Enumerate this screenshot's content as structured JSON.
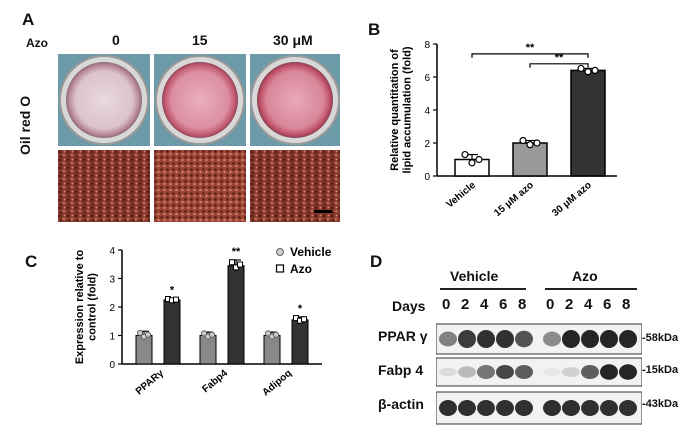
{
  "panels": {
    "A": {
      "letter": "A",
      "treatment_label": "Azo",
      "doses": [
        "0",
        "15",
        "30 μM"
      ],
      "stain_label": "Oil red O"
    },
    "B": {
      "letter": "B"
    },
    "C": {
      "letter": "C"
    },
    "D": {
      "letter": "D",
      "group_labels": [
        "Vehicle",
        "Azo"
      ],
      "days_label": "Days",
      "days_vehicle": [
        "0",
        "2",
        "4",
        "6",
        "8"
      ],
      "days_azo": [
        "0",
        "2",
        "4",
        "6",
        "8"
      ],
      "blots": [
        {
          "label": "PPAR γ",
          "kda": "-58kDa"
        },
        {
          "label": "Fabp 4",
          "kda": "-15kDa"
        },
        {
          "label": "β-actin",
          "kda": "-43kDa"
        }
      ]
    }
  },
  "chart_data": [
    {
      "type": "bar",
      "panel": "B",
      "ylabel": "Relative quantitation of lipid accumulation (fold)",
      "categories": [
        "Vehicle",
        "15 μM azo",
        "30 μM azo"
      ],
      "values": [
        1.0,
        2.0,
        6.4
      ],
      "errors": [
        0.3,
        0.15,
        0.12
      ],
      "colors": [
        "#ffffff",
        "#999999",
        "#333333"
      ],
      "ylim": [
        0,
        8
      ],
      "yticks": [
        0,
        2,
        4,
        6,
        8
      ],
      "significance": [
        {
          "label": "**",
          "from": "Vehicle",
          "to": "30 μM azo"
        },
        {
          "label": "**",
          "from": "15 μM azo",
          "to": "30 μM azo"
        }
      ]
    },
    {
      "type": "bar",
      "panel": "C",
      "ylabel": "Expression relative to control (fold)",
      "categories": [
        "PPARγ",
        "Fabp4",
        "Adipoq"
      ],
      "series": [
        {
          "name": "Vehicle",
          "values": [
            1.0,
            1.0,
            1.0
          ],
          "errors": [
            0.15,
            0.12,
            0.12
          ],
          "color": "#888888"
        },
        {
          "name": "Azo",
          "values": [
            2.25,
            3.45,
            1.55
          ],
          "errors": [
            0.05,
            0.2,
            0.1
          ],
          "color": "#333333"
        }
      ],
      "significance": [
        "*",
        "**",
        "*"
      ],
      "ylim": [
        0,
        4
      ],
      "yticks": [
        0,
        1,
        2,
        3,
        4
      ],
      "legend": "top-right"
    }
  ]
}
